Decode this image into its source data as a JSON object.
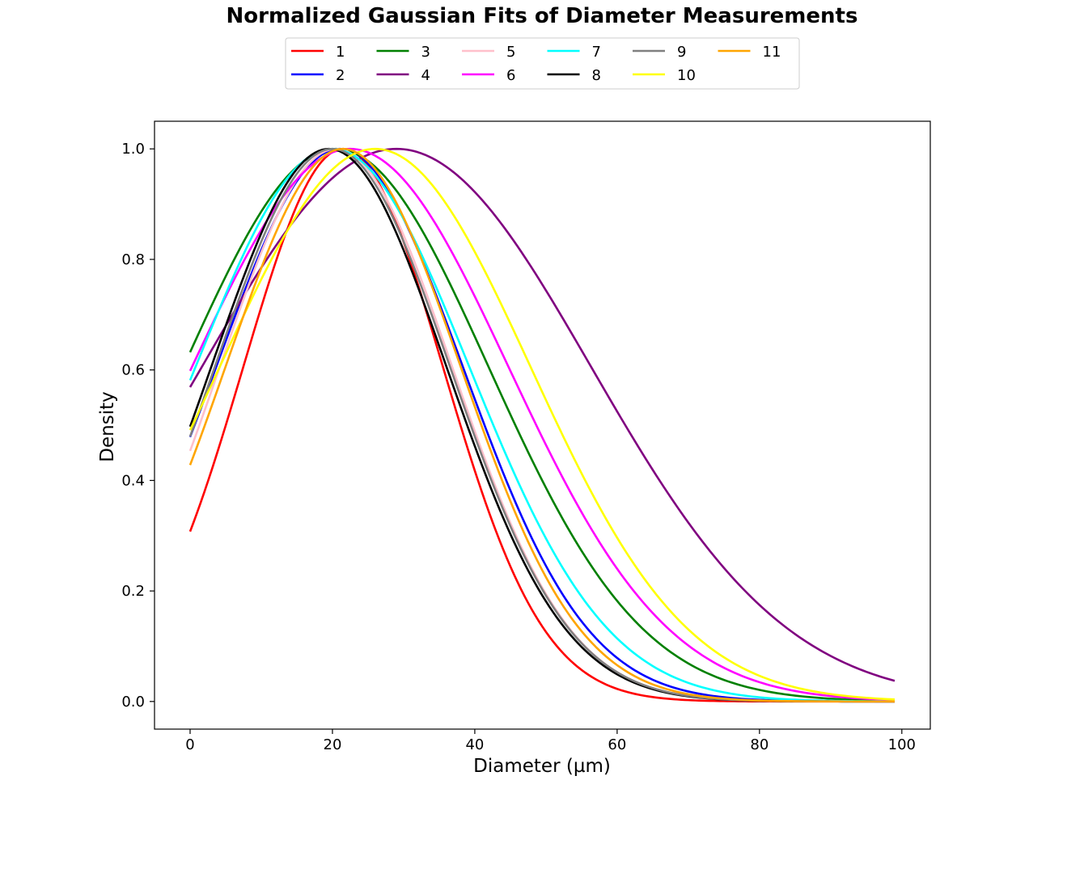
{
  "chart_data": {
    "type": "line",
    "title": "Normalized Gaussian Fits of Diameter Measurements",
    "xlabel": "Diameter (µm)",
    "ylabel": "Density",
    "xlim": [
      -5,
      104
    ],
    "ylim": [
      -0.05,
      1.05
    ],
    "xticks": [
      0,
      20,
      40,
      60,
      80,
      100
    ],
    "yticks": [
      0.0,
      0.2,
      0.4,
      0.6,
      0.8,
      1.0
    ],
    "xtick_labels": [
      "0",
      "20",
      "40",
      "60",
      "80",
      "100"
    ],
    "ytick_labels": [
      "0.0",
      "0.2",
      "0.4",
      "0.6",
      "0.8",
      "1.0"
    ],
    "x_range": [
      0,
      99
    ],
    "legend_position": "top-center",
    "legend_ncol": 6,
    "grid": false,
    "series": [
      {
        "name": "1",
        "color": "#ff0000",
        "mu": 21.5,
        "sigma": 14.0
      },
      {
        "name": "2",
        "color": "#0000ff",
        "mu": 21.0,
        "sigma": 17.3
      },
      {
        "name": "3",
        "color": "#008000",
        "mu": 20.5,
        "sigma": 21.4
      },
      {
        "name": "4",
        "color": "#800080",
        "mu": 29.0,
        "sigma": 27.3
      },
      {
        "name": "5",
        "color": "#ffc0cb",
        "mu": 20.5,
        "sigma": 16.3
      },
      {
        "name": "6",
        "color": "#ff00ff",
        "mu": 22.5,
        "sigma": 22.2
      },
      {
        "name": "7",
        "color": "#00ffff",
        "mu": 20.0,
        "sigma": 19.2
      },
      {
        "name": "8",
        "color": "#000000",
        "mu": 19.5,
        "sigma": 16.5
      },
      {
        "name": "9",
        "color": "#808080",
        "mu": 20.0,
        "sigma": 16.5
      },
      {
        "name": "10",
        "color": "#ffff00",
        "mu": 26.0,
        "sigma": 21.8
      },
      {
        "name": "11",
        "color": "#ffa500",
        "mu": 21.5,
        "sigma": 16.5
      }
    ]
  }
}
